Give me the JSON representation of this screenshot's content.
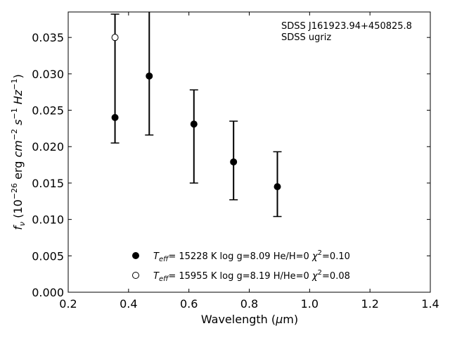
{
  "chart_data": {
    "type": "scatter",
    "annotations": [
      "SDSS J161923.94+450825.8",
      "SDSS ugriz"
    ],
    "xlabel": "Wavelength (μm)",
    "ylabel": "fν (10⁻²⁶ erg cm⁻² s⁻¹ Hz⁻¹)",
    "xlim": [
      0.2,
      1.4
    ],
    "ylim": [
      0.0,
      0.0385
    ],
    "xticks": [
      0.2,
      0.4,
      0.6,
      0.8,
      1.0,
      1.2,
      1.4
    ],
    "xtick_labels": [
      "0.2",
      "0.4",
      "0.6",
      "0.8",
      "1.0",
      "1.2",
      "1.4"
    ],
    "yticks": [
      0.0,
      0.005,
      0.01,
      0.015,
      0.02,
      0.025,
      0.03,
      0.035
    ],
    "ytick_labels": [
      "0.000",
      "0.005",
      "0.010",
      "0.015",
      "0.020",
      "0.025",
      "0.030",
      "0.035"
    ],
    "grid": false,
    "legend_placement": "bottom-center",
    "observed": {
      "x": [
        0.3551,
        0.4686,
        0.6166,
        0.748,
        0.8932
      ],
      "y": [
        0.024,
        0.0297,
        0.0231,
        0.0178,
        0.0145
      ],
      "yerr_low": [
        0.0205,
        0.0216,
        0.015,
        0.0127,
        0.0104
      ],
      "yerr_high": [
        0.0382,
        0.04,
        0.0278,
        0.0235,
        0.0193
      ]
    },
    "series": [
      {
        "name": "Teff= 15228 K  log g=8.09  He/H=0  χ2=0.10",
        "marker": "filled",
        "x": [
          0.3551,
          0.4686,
          0.6166,
          0.748,
          0.8932
        ],
        "y": [
          0.024,
          0.0297,
          0.0231,
          0.0179,
          0.0145
        ]
      },
      {
        "name": "Teff= 15955 K  log g=8.19  H/He=0  χ2=0.08",
        "marker": "open",
        "x": [
          0.3551
        ],
        "y": [
          0.035
        ]
      }
    ],
    "legend": [
      {
        "teff_label": "15228",
        "logg": "8.09",
        "comp": "He/H=0",
        "chi2": "0.10"
      },
      {
        "teff_label": "15955",
        "logg": "8.19",
        "comp": "H/He=0",
        "chi2": "0.08"
      }
    ]
  }
}
